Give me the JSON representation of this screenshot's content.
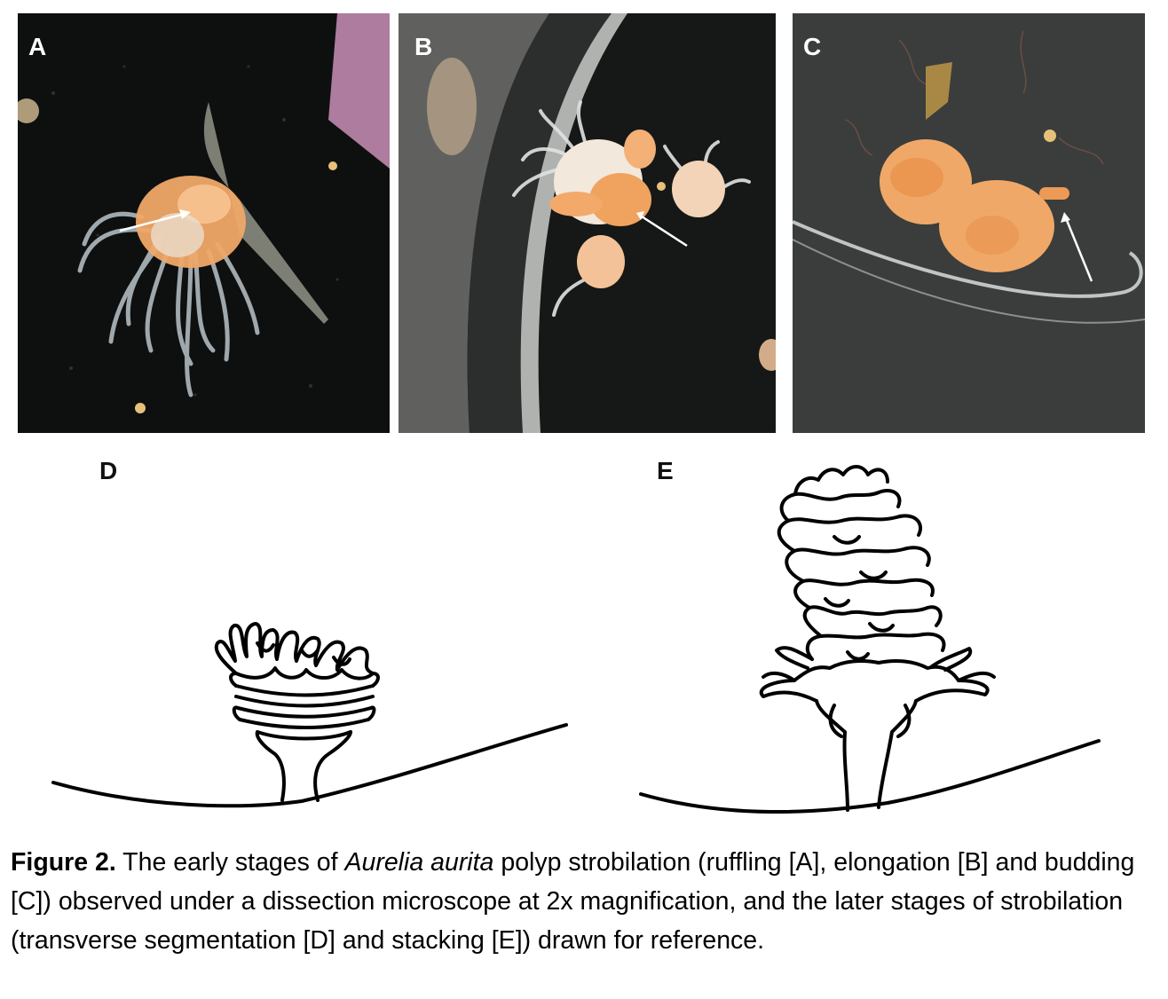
{
  "panels": {
    "a": {
      "label": "A"
    },
    "b": {
      "label": "B"
    },
    "c": {
      "label": "C"
    },
    "d": {
      "label": "D"
    },
    "e": {
      "label": "E"
    }
  },
  "caption": {
    "figure_label": "Figure 2.",
    "text_1": " The early stages of ",
    "species": "Aurelia aurita",
    "text_2": " polyp strobilation (ruffling [A], elongation [B] and budding [C]) observed under a dissection microscope at 2x magnification, and the later stages of strobilation (transverse segmentation [D] and stacking [E]) drawn for reference."
  },
  "colors": {
    "photo_background": "#0d0f0e",
    "polyp_orange": "#f0a868",
    "tentacle_gray": "#b9c3c8",
    "arrow": "#ffffff",
    "drawing_ink": "#000000"
  }
}
